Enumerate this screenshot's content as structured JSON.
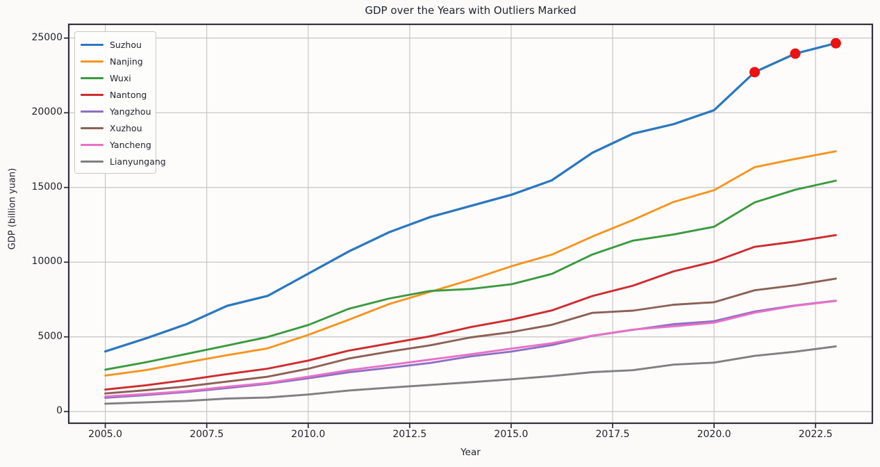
{
  "chart_data": {
    "type": "line",
    "title": "GDP over the Years with Outliers Marked",
    "xlabel": "Year",
    "ylabel": "GDP (billion yuan)",
    "grid": true,
    "legend_position": "upper left",
    "xlim": [
      2004.1,
      2023.9
    ],
    "ylim": [
      -780,
      25920
    ],
    "xticks": [
      {
        "v": 2005.0,
        "label": "2005.0"
      },
      {
        "v": 2007.5,
        "label": "2007.5"
      },
      {
        "v": 2010.0,
        "label": "2010.0"
      },
      {
        "v": 2012.5,
        "label": "2012.5"
      },
      {
        "v": 2015.0,
        "label": "2015.0"
      },
      {
        "v": 2017.5,
        "label": "2017.5"
      },
      {
        "v": 2020.0,
        "label": "2020.0"
      },
      {
        "v": 2022.5,
        "label": "2022.5"
      }
    ],
    "yticks": [
      {
        "v": 0,
        "label": "0"
      },
      {
        "v": 5000,
        "label": "5000"
      },
      {
        "v": 10000,
        "label": "10000"
      },
      {
        "v": 15000,
        "label": "15000"
      },
      {
        "v": 20000,
        "label": "20000"
      },
      {
        "v": 25000,
        "label": "25000"
      }
    ],
    "x": [
      2005,
      2006,
      2007,
      2008,
      2009,
      2010,
      2011,
      2012,
      2013,
      2014,
      2015,
      2016,
      2017,
      2018,
      2019,
      2020,
      2021,
      2022,
      2023
    ],
    "series": [
      {
        "name": "Suzhou",
        "color": "#2b78be",
        "values": [
          4026,
          4900,
          5850,
          7078,
          7740,
          9228,
          10717,
          12012,
          13016,
          13761,
          14504,
          15475,
          17320,
          18597,
          19236,
          20171,
          22718,
          23958,
          24653
        ]
      },
      {
        "name": "Nanjing",
        "color": "#f6941e",
        "values": [
          2411,
          2774,
          3284,
          3775,
          4230,
          5131,
          6146,
          7202,
          8012,
          8821,
          9721,
          10503,
          11715,
          12820,
          14030,
          14818,
          16355,
          16908,
          17421
        ]
      },
      {
        "name": "Wuxi",
        "color": "#3a9a3e",
        "values": [
          2805,
          3300,
          3858,
          4419,
          4992,
          5793,
          6880,
          7568,
          8070,
          8205,
          8518,
          9210,
          10512,
          11439,
          11852,
          12370,
          14003,
          14851,
          15456
        ]
      },
      {
        "name": "Nantong",
        "color": "#cf2b2d",
        "values": [
          1472,
          1758,
          2112,
          2510,
          2873,
          3418,
          4080,
          4559,
          5039,
          5653,
          6148,
          6768,
          7734,
          8427,
          9383,
          10036,
          11027,
          11380,
          11813
        ]
      },
      {
        "name": "Yangzhou",
        "color": "#8d6fc6",
        "values": [
          922,
          1101,
          1311,
          1573,
          1856,
          2229,
          2630,
          2933,
          3252,
          3697,
          4016,
          4449,
          5065,
          5466,
          5850,
          6048,
          6696,
          7105,
          7423
        ]
      },
      {
        "name": "Xuzhou",
        "color": "#8d6055",
        "values": [
          1212,
          1428,
          1679,
          2007,
          2331,
          2866,
          3551,
          4016,
          4436,
          4964,
          5320,
          5808,
          6606,
          6755,
          7151,
          7320,
          8117,
          8458,
          8900
        ]
      },
      {
        "name": "Yancheng",
        "color": "#e871c6",
        "values": [
          1005,
          1174,
          1371,
          1658,
          1917,
          2332,
          2771,
          3120,
          3475,
          3836,
          4213,
          4576,
          5083,
          5487,
          5702,
          5953,
          6617,
          7080,
          7403
        ]
      },
      {
        "name": "Lianyungang",
        "color": "#808084",
        "values": [
          527,
          620,
          713,
          873,
          942,
          1141,
          1411,
          1603,
          1785,
          1966,
          2160,
          2376,
          2640,
          2771,
          3139,
          3277,
          3727,
          4005,
          4363
        ]
      }
    ],
    "outliers": {
      "series": "Suzhou",
      "x": [
        2021,
        2022,
        2023
      ],
      "y": [
        22718,
        23958,
        24653
      ],
      "color": "#ec1212",
      "marker_radius": 7.5
    },
    "style": {
      "plot_bg": "#fdfcfb",
      "grid_color": "#c6c5c8",
      "spine_color": "#32323c",
      "text_color": "#23232e"
    }
  }
}
